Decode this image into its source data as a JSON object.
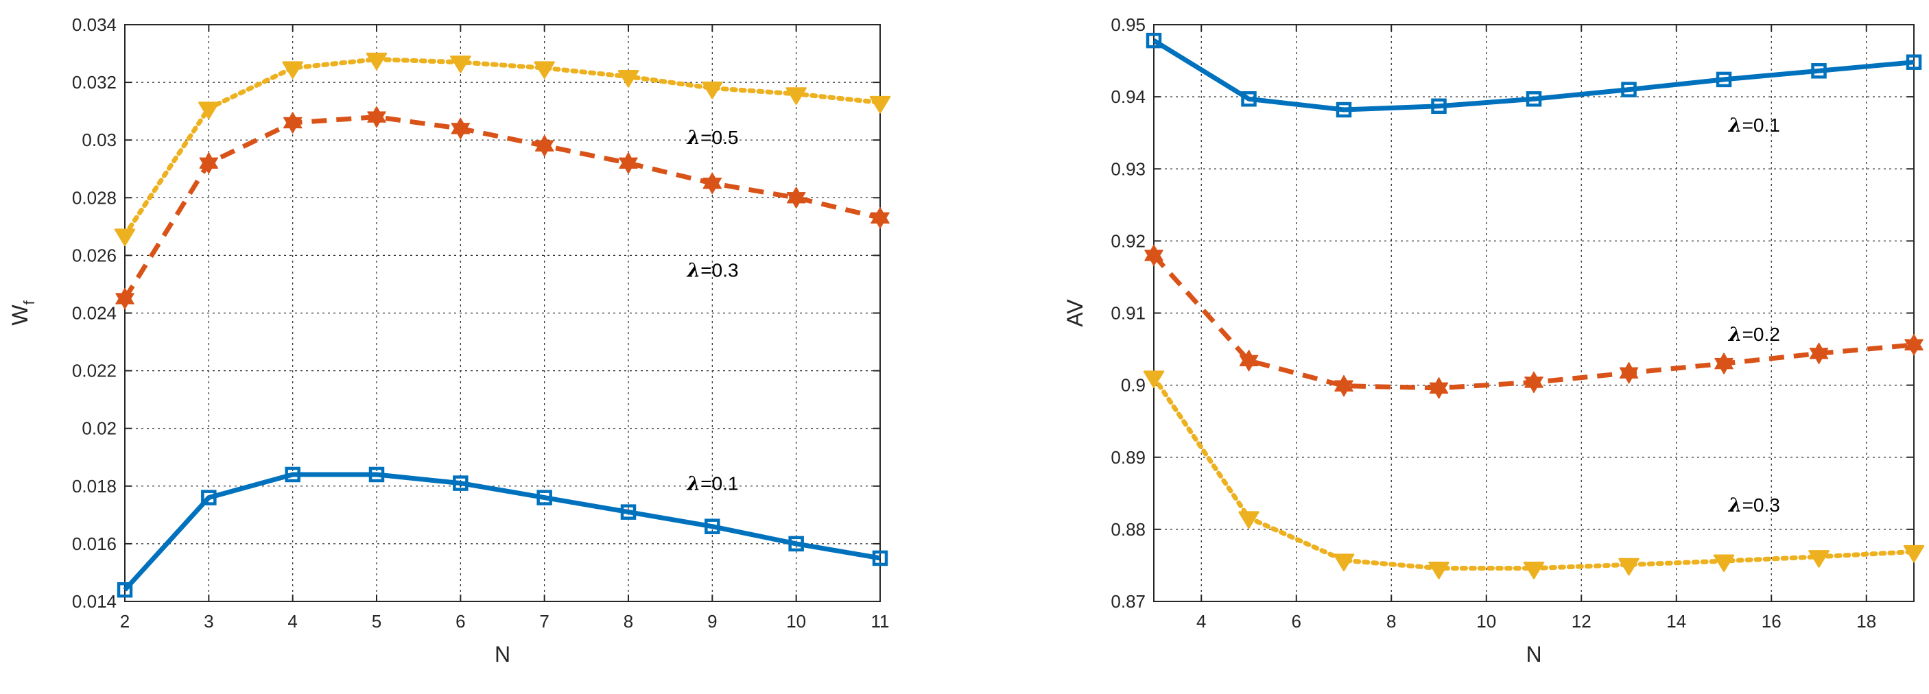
{
  "chart_data": [
    {
      "type": "line",
      "title": "",
      "xlabel": "N",
      "ylabel": "W",
      "ylabel_subscript": "f",
      "xlim": [
        2,
        11
      ],
      "ylim": [
        0.014,
        0.034
      ],
      "xticks": [
        "2",
        "3",
        "4",
        "5",
        "6",
        "7",
        "8",
        "9",
        "10",
        "11"
      ],
      "yticks": [
        "0.014",
        "0.016",
        "0.018",
        "0.02",
        "0.022",
        "0.024",
        "0.026",
        "0.028",
        "0.03",
        "0.032",
        "0.034"
      ],
      "x": [
        2,
        3,
        4,
        5,
        6,
        7,
        8,
        9,
        10,
        11
      ],
      "grid": true,
      "series": [
        {
          "name": "λ=0.1",
          "color": "#0072BD",
          "line_style": "solid",
          "marker": "square",
          "values": [
            0.0144,
            0.0176,
            0.0184,
            0.0184,
            0.0181,
            0.0176,
            0.0171,
            0.0166,
            0.016,
            0.0155
          ]
        },
        {
          "name": "λ=0.3",
          "color": "#D95319",
          "line_style": "dashed",
          "marker": "hexagram",
          "values": [
            0.0245,
            0.0292,
            0.0306,
            0.0308,
            0.0304,
            0.0298,
            0.0292,
            0.0285,
            0.028,
            0.0273
          ]
        },
        {
          "name": "λ=0.5",
          "color": "#EDB120",
          "line_style": "dotted",
          "marker": "triangle-down",
          "values": [
            0.0267,
            0.0311,
            0.0325,
            0.0328,
            0.0327,
            0.0325,
            0.0322,
            0.0318,
            0.0316,
            0.0313
          ]
        }
      ],
      "annotations": [
        {
          "symbol": "λ",
          "text": "=0.5",
          "x": 8.7,
          "y": 0.0301
        },
        {
          "symbol": "λ",
          "text": "=0.3",
          "x": 8.7,
          "y": 0.0255
        },
        {
          "symbol": "λ",
          "text": "=0.1",
          "x": 8.7,
          "y": 0.0181
        }
      ]
    },
    {
      "type": "line",
      "title": "",
      "xlabel": "N",
      "ylabel": "AV",
      "xlim": [
        3,
        19
      ],
      "ylim": [
        0.87,
        0.95
      ],
      "xticks": [
        "4",
        "6",
        "8",
        "10",
        "12",
        "14",
        "16",
        "18"
      ],
      "yticks": [
        "0.87",
        "0.88",
        "0.89",
        "0.9",
        "0.91",
        "0.92",
        "0.93",
        "0.94",
        "0.95"
      ],
      "x": [
        3,
        5,
        7,
        9,
        11,
        13,
        15,
        17,
        19
      ],
      "grid": true,
      "series": [
        {
          "name": "λ=0.1",
          "color": "#0072BD",
          "line_style": "solid",
          "marker": "square",
          "values": [
            0.9478,
            0.9397,
            0.9382,
            0.9387,
            0.9397,
            0.941,
            0.9424,
            0.9436,
            0.9448
          ]
        },
        {
          "name": "λ=0.2",
          "color": "#D95319",
          "line_style": "dashed",
          "marker": "hexagram",
          "values": [
            0.918,
            0.9034,
            0.8999,
            0.8996,
            0.9004,
            0.9017,
            0.903,
            0.9044,
            0.9056
          ]
        },
        {
          "name": "λ=0.3",
          "color": "#EDB120",
          "line_style": "dotted",
          "marker": "triangle-down",
          "values": [
            0.9011,
            0.8816,
            0.8757,
            0.8746,
            0.8746,
            0.8751,
            0.8756,
            0.8762,
            0.8769
          ]
        }
      ],
      "annotations": [
        {
          "symbol": "λ",
          "text": "=0.1",
          "x": 15.1,
          "y": 0.9361
        },
        {
          "symbol": "λ",
          "text": "=0.2",
          "x": 15.1,
          "y": 0.9071
        },
        {
          "symbol": "λ",
          "text": "=0.3",
          "x": 15.1,
          "y": 0.8834
        }
      ]
    }
  ]
}
